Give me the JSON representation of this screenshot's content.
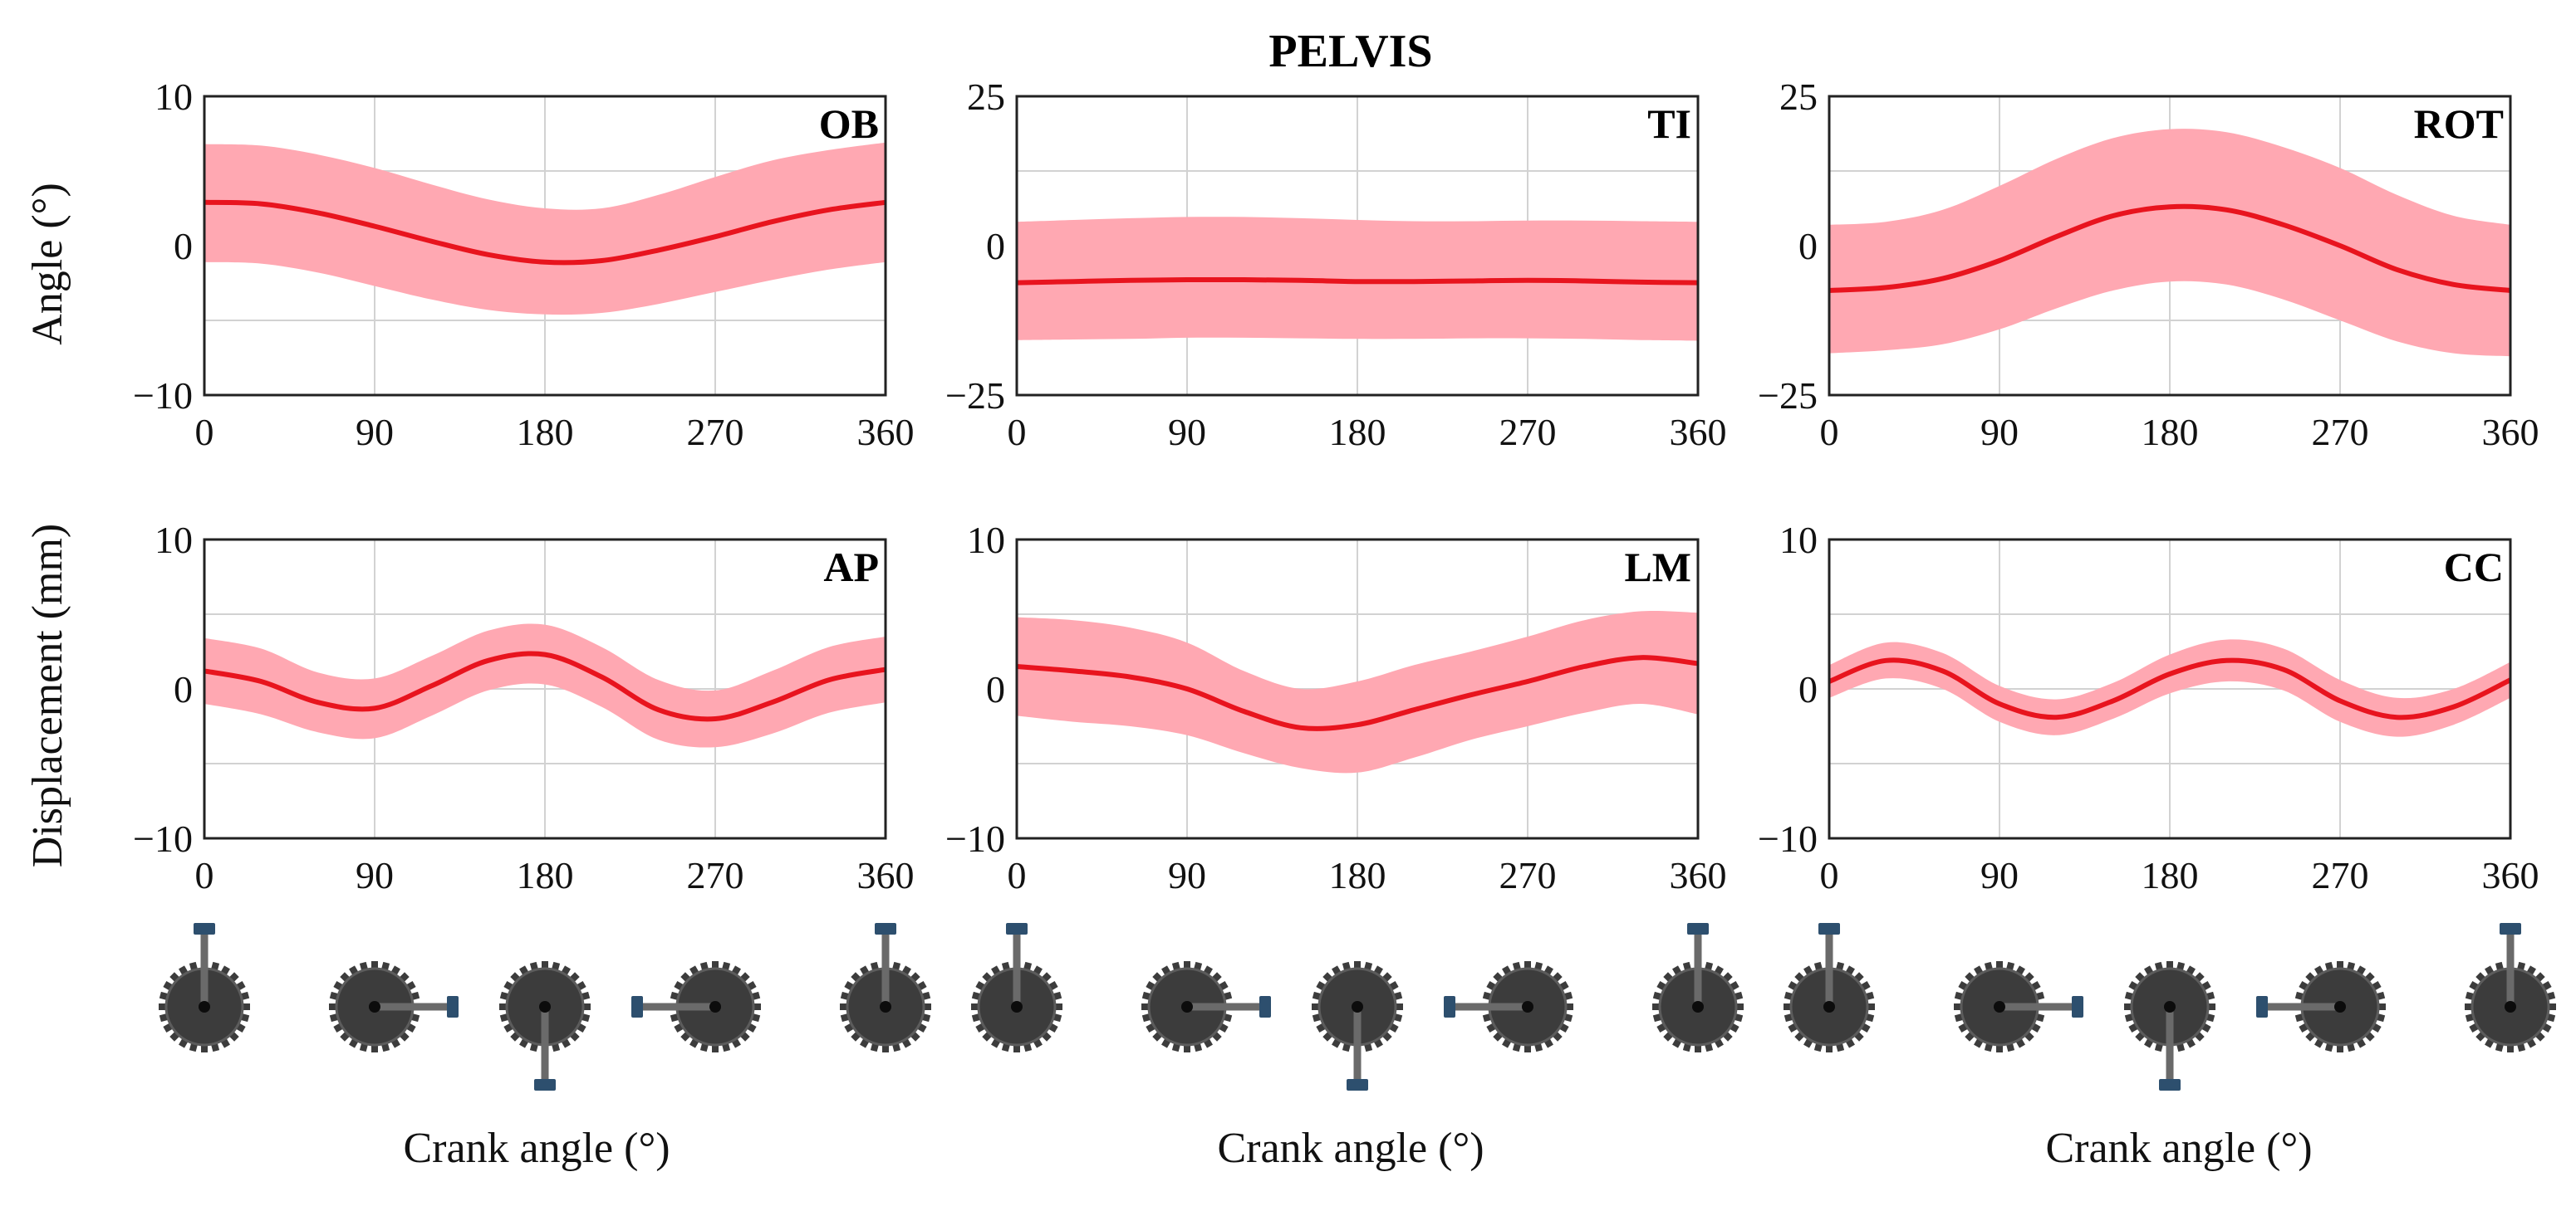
{
  "figure": {
    "title": "PELVIS",
    "y_label_top": "Angle (°)",
    "y_label_bottom": "Displacement (mm)",
    "x_label": "Crank angle (°)"
  },
  "colors": {
    "mean_line": "#e8141e",
    "band": "#ffa8b2",
    "crank_body": "#3c3c3c",
    "crank_arm": "#6a6a6a",
    "pedal": "#2d4f6e"
  },
  "crank": {
    "angles_deg": [
      0,
      90,
      180,
      270,
      360
    ]
  },
  "chart_data": [
    {
      "type": "line",
      "id": "ob",
      "label": "OB",
      "row": 0,
      "col": 0,
      "ylabel": "Angle (°)",
      "xlabel": "Crank angle (°)",
      "xlim": [
        0,
        360
      ],
      "ylim": [
        -10,
        10
      ],
      "xticks": [
        0,
        90,
        180,
        270,
        360
      ],
      "yticks": [
        -10,
        0,
        10
      ],
      "ygrid": [
        -5,
        0,
        5
      ],
      "x": [
        0,
        30,
        60,
        90,
        120,
        150,
        180,
        210,
        240,
        270,
        300,
        330,
        360
      ],
      "mean": [
        2.9,
        2.8,
        2.2,
        1.3,
        0.3,
        -0.6,
        -1.1,
        -1.0,
        -0.3,
        0.6,
        1.6,
        2.4,
        2.9
      ],
      "upper": [
        6.8,
        6.7,
        6.1,
        5.2,
        4.1,
        3.1,
        2.5,
        2.5,
        3.4,
        4.6,
        5.7,
        6.4,
        6.9
      ],
      "lower": [
        -1.1,
        -1.2,
        -1.8,
        -2.7,
        -3.6,
        -4.3,
        -4.6,
        -4.5,
        -3.9,
        -3.1,
        -2.3,
        -1.6,
        -1.1
      ]
    },
    {
      "type": "line",
      "id": "ti",
      "label": "TI",
      "row": 0,
      "col": 1,
      "ylabel": "",
      "xlabel": "Crank angle (°)",
      "xlim": [
        0,
        360
      ],
      "ylim": [
        -25,
        25
      ],
      "xticks": [
        0,
        90,
        180,
        270,
        360
      ],
      "yticks": [
        -25,
        0,
        25
      ],
      "ygrid": [
        -12.5,
        0,
        12.5
      ],
      "x": [
        0,
        30,
        60,
        90,
        120,
        150,
        180,
        210,
        240,
        270,
        300,
        330,
        360
      ],
      "mean": [
        -6.2,
        -6.0,
        -5.8,
        -5.7,
        -5.7,
        -5.8,
        -6.0,
        -6.0,
        -5.9,
        -5.8,
        -5.9,
        -6.1,
        -6.2
      ],
      "upper": [
        4.0,
        4.3,
        4.6,
        4.8,
        4.8,
        4.6,
        4.3,
        4.1,
        4.1,
        4.2,
        4.2,
        4.1,
        4.0
      ],
      "lower": [
        -15.8,
        -15.7,
        -15.6,
        -15.4,
        -15.4,
        -15.5,
        -15.6,
        -15.6,
        -15.5,
        -15.5,
        -15.6,
        -15.8,
        -15.9
      ]
    },
    {
      "type": "line",
      "id": "rot",
      "label": "ROT",
      "row": 0,
      "col": 2,
      "ylabel": "",
      "xlabel": "Crank angle (°)",
      "xlim": [
        0,
        360
      ],
      "ylim": [
        -25,
        25
      ],
      "xticks": [
        0,
        90,
        180,
        270,
        360
      ],
      "yticks": [
        -25,
        0,
        25
      ],
      "ygrid": [
        -12.5,
        0,
        12.5
      ],
      "x": [
        0,
        30,
        60,
        90,
        120,
        150,
        180,
        210,
        240,
        270,
        300,
        330,
        360
      ],
      "mean": [
        -7.5,
        -7.0,
        -5.5,
        -2.5,
        1.5,
        5.0,
        6.5,
        6.0,
        3.5,
        0.0,
        -4.0,
        -6.5,
        -7.5
      ],
      "upper": [
        3.5,
        4.0,
        6.0,
        10.0,
        14.5,
        18.0,
        19.5,
        19.0,
        16.5,
        13.0,
        8.5,
        5.0,
        3.5
      ],
      "lower": [
        -18.0,
        -17.5,
        -16.5,
        -14.0,
        -10.5,
        -7.5,
        -6.0,
        -6.5,
        -9.0,
        -12.5,
        -16.0,
        -18.0,
        -18.5
      ]
    },
    {
      "type": "line",
      "id": "ap",
      "label": "AP",
      "row": 1,
      "col": 0,
      "ylabel": "Displacement (mm)",
      "xlabel": "Crank angle (°)",
      "xlim": [
        0,
        360
      ],
      "ylim": [
        -10,
        10
      ],
      "xticks": [
        0,
        90,
        180,
        270,
        360
      ],
      "yticks": [
        -10,
        0,
        10
      ],
      "ygrid": [
        -5,
        0,
        5
      ],
      "x": [
        0,
        30,
        60,
        90,
        120,
        150,
        180,
        210,
        240,
        270,
        300,
        330,
        360
      ],
      "mean": [
        1.2,
        0.5,
        -0.9,
        -1.3,
        0.2,
        1.9,
        2.3,
        0.8,
        -1.4,
        -2.0,
        -0.9,
        0.6,
        1.3
      ],
      "upper": [
        3.4,
        2.7,
        1.1,
        0.7,
        2.2,
        3.9,
        4.3,
        2.8,
        0.6,
        -0.1,
        1.2,
        2.8,
        3.5
      ],
      "lower": [
        -1.0,
        -1.7,
        -2.9,
        -3.3,
        -1.8,
        -0.1,
        0.3,
        -1.2,
        -3.4,
        -3.9,
        -3.0,
        -1.6,
        -0.9
      ]
    },
    {
      "type": "line",
      "id": "lm",
      "label": "LM",
      "row": 1,
      "col": 1,
      "ylabel": "",
      "xlabel": "Crank angle (°)",
      "xlim": [
        0,
        360
      ],
      "ylim": [
        -10,
        10
      ],
      "xticks": [
        0,
        90,
        180,
        270,
        360
      ],
      "yticks": [
        -10,
        0,
        10
      ],
      "ygrid": [
        -5,
        0,
        5
      ],
      "x": [
        0,
        30,
        60,
        90,
        120,
        150,
        180,
        210,
        240,
        270,
        300,
        330,
        360
      ],
      "mean": [
        1.5,
        1.2,
        0.8,
        0.0,
        -1.5,
        -2.6,
        -2.4,
        -1.4,
        -0.4,
        0.5,
        1.5,
        2.1,
        1.7
      ],
      "upper": [
        4.8,
        4.6,
        4.1,
        3.1,
        1.2,
        0.0,
        0.5,
        1.6,
        2.5,
        3.5,
        4.6,
        5.2,
        5.1
      ],
      "lower": [
        -1.8,
        -2.2,
        -2.5,
        -3.1,
        -4.3,
        -5.3,
        -5.6,
        -4.6,
        -3.4,
        -2.5,
        -1.6,
        -1.0,
        -1.7
      ]
    },
    {
      "type": "line",
      "id": "cc",
      "label": "CC",
      "row": 1,
      "col": 2,
      "ylabel": "",
      "xlabel": "Crank angle (°)",
      "xlim": [
        0,
        360
      ],
      "ylim": [
        -10,
        10
      ],
      "xticks": [
        0,
        90,
        180,
        270,
        360
      ],
      "yticks": [
        -10,
        0,
        10
      ],
      "ygrid": [
        -5,
        0,
        5
      ],
      "x": [
        0,
        30,
        60,
        90,
        120,
        150,
        180,
        210,
        240,
        270,
        300,
        330,
        360
      ],
      "mean": [
        0.5,
        1.9,
        1.2,
        -1.0,
        -1.9,
        -0.8,
        1.0,
        1.9,
        1.3,
        -0.8,
        -1.9,
        -1.2,
        0.6
      ],
      "upper": [
        1.6,
        3.1,
        2.4,
        0.2,
        -0.7,
        0.4,
        2.3,
        3.3,
        2.7,
        0.6,
        -0.6,
        0.0,
        1.8
      ],
      "lower": [
        -0.6,
        0.7,
        0.0,
        -2.2,
        -3.1,
        -2.0,
        -0.3,
        0.5,
        -0.1,
        -2.2,
        -3.2,
        -2.4,
        -0.6
      ]
    }
  ]
}
